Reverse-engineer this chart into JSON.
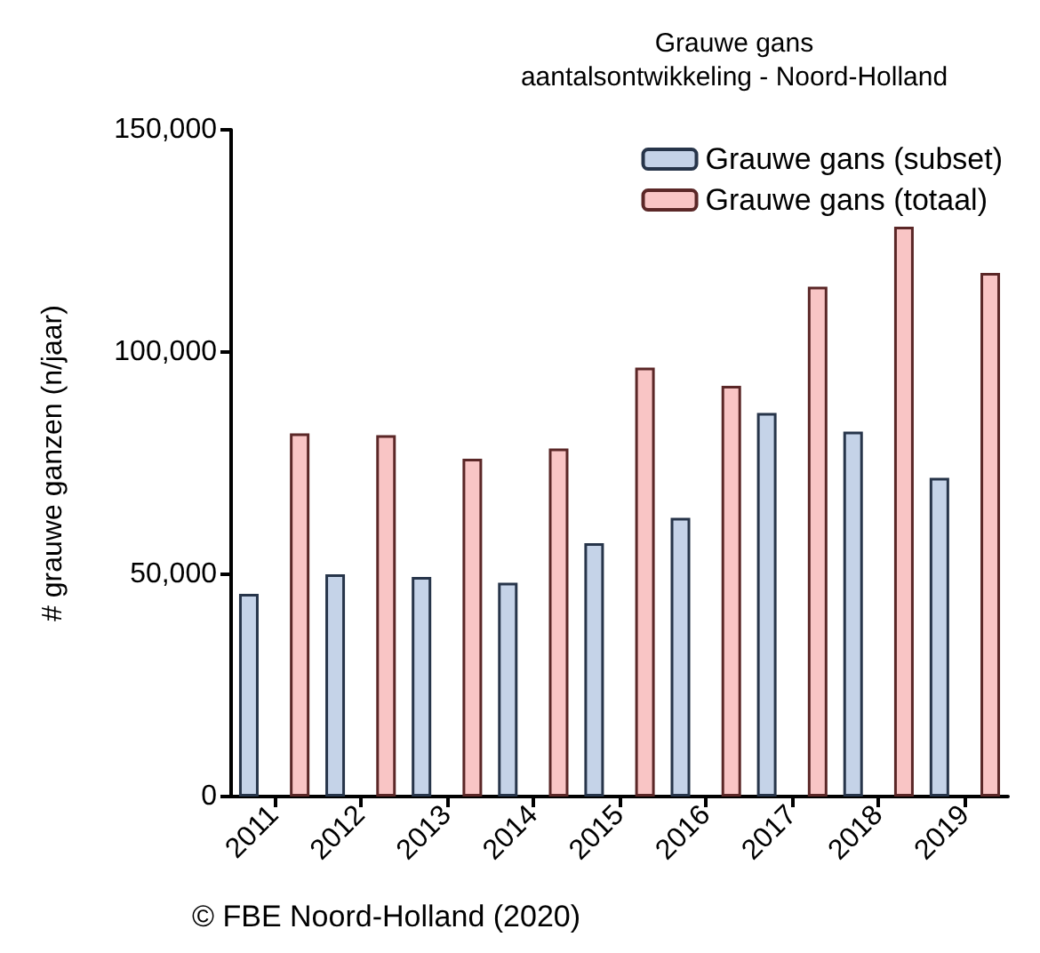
{
  "chart_data": {
    "type": "bar",
    "title": "Grauwe gans\naantalsontwikkeling - Noord-Holland",
    "ylabel": "# grauwe ganzen (n/jaar)",
    "categories": [
      "2011",
      "2012",
      "2013",
      "2014",
      "2015",
      "2016",
      "2017",
      "2018",
      "2019"
    ],
    "series": [
      {
        "name": "Grauwe gans (subset)",
        "color": "#c5d3e8",
        "values": [
          45600,
          50000,
          49400,
          48100,
          57000,
          62700,
          86300,
          82100,
          71700
        ]
      },
      {
        "name": "Grauwe gans (totaal)",
        "color": "#f9c5c5",
        "values": [
          81700,
          81300,
          76000,
          78300,
          96500,
          92400,
          114700,
          128200,
          117800
        ]
      }
    ],
    "ylim": [
      0,
      150000
    ],
    "yticks": [
      {
        "value": 0,
        "label": "0"
      },
      {
        "value": 50000,
        "label": "50,000"
      },
      {
        "value": 100000,
        "label": "100,000"
      },
      {
        "value": 150000,
        "label": "150,000"
      }
    ],
    "grid": false,
    "legend": "top right",
    "annotations": [
      "© FBE Noord-Holland (2020)"
    ]
  }
}
